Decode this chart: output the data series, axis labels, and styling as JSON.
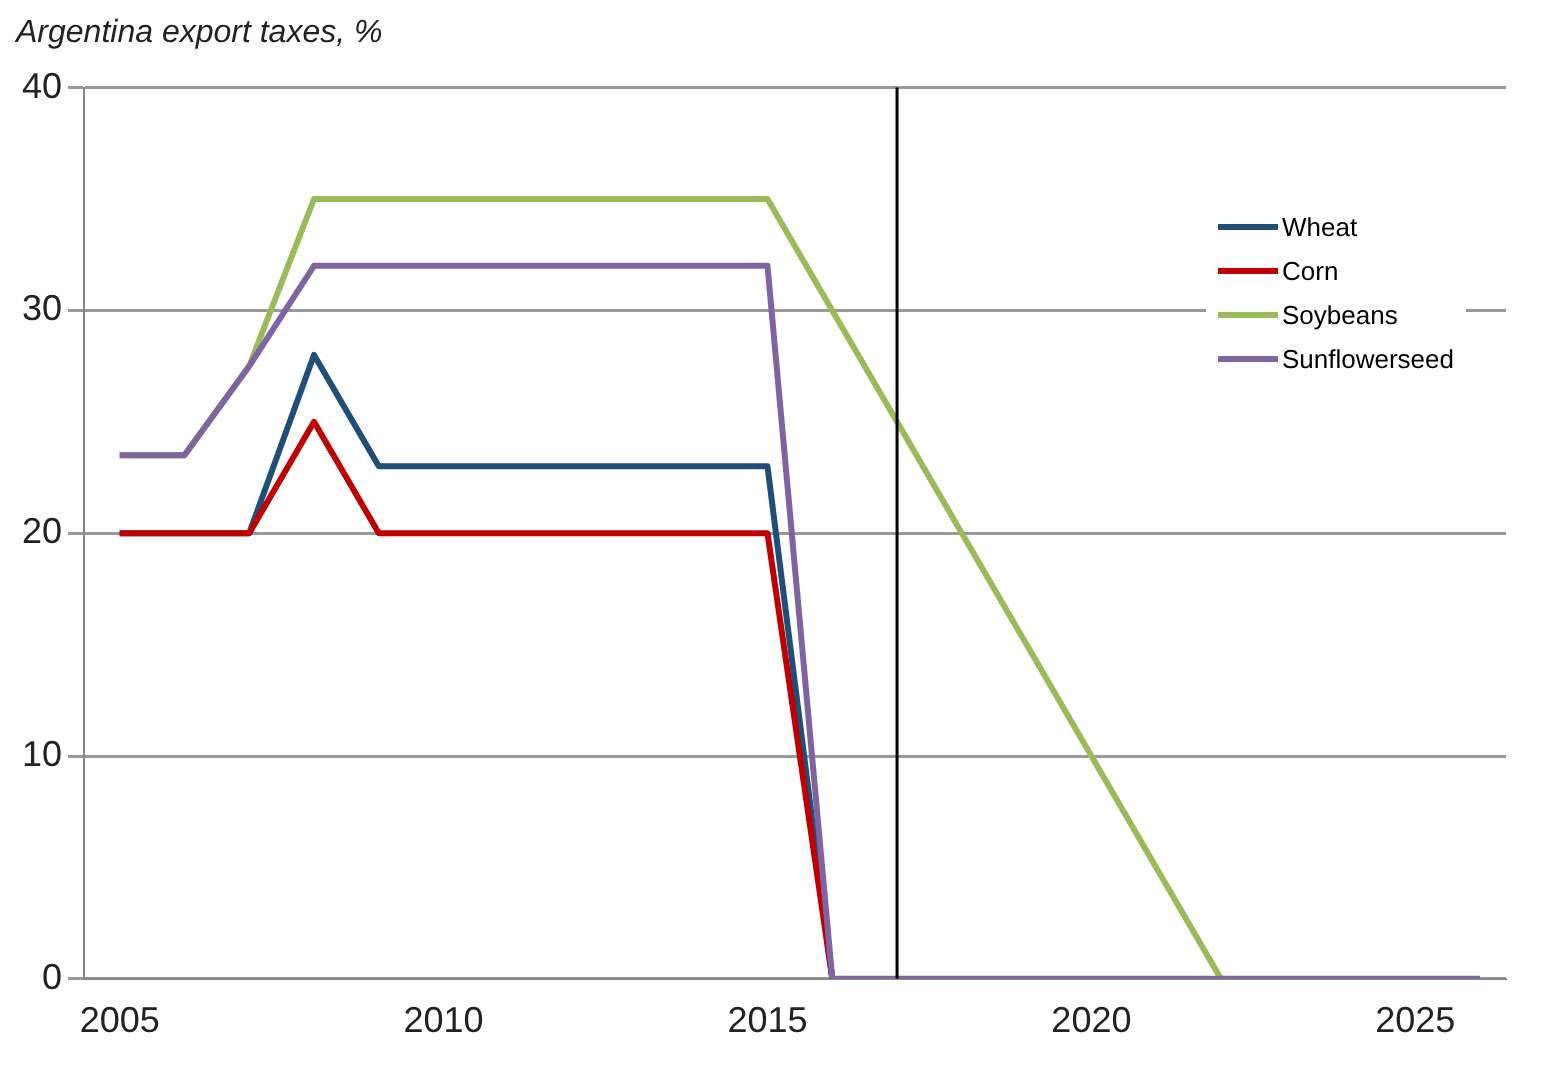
{
  "chart_data": {
    "type": "line",
    "subtitle": "Argentina export taxes, %",
    "x": [
      2005,
      2006,
      2007,
      2008,
      2009,
      2010,
      2011,
      2012,
      2013,
      2014,
      2015,
      2016,
      2017,
      2018,
      2019,
      2020,
      2021,
      2022,
      2023,
      2024,
      2025,
      2026
    ],
    "series": [
      {
        "name": "Wheat",
        "color": "#1f4e79",
        "values": [
          20,
          20,
          20,
          28,
          23,
          23,
          23,
          23,
          23,
          23,
          23,
          0,
          null,
          null,
          null,
          null,
          null,
          null,
          null,
          null,
          null,
          null
        ]
      },
      {
        "name": "Corn",
        "color": "#c00000",
        "values": [
          20,
          20,
          20,
          25,
          20,
          20,
          20,
          20,
          20,
          20,
          20,
          0,
          null,
          null,
          null,
          null,
          null,
          null,
          null,
          null,
          null,
          null
        ]
      },
      {
        "name": "Soybeans",
        "color": "#9bbb59",
        "values": [
          23.5,
          23.5,
          27.5,
          35,
          35,
          35,
          35,
          35,
          35,
          35,
          35,
          30,
          25,
          20,
          15,
          10,
          5,
          0,
          null,
          null,
          null,
          null
        ]
      },
      {
        "name": "Sunflowerseed",
        "color": "#8064a2",
        "values": [
          23.5,
          23.5,
          27.5,
          32,
          32,
          32,
          32,
          32,
          32,
          32,
          32,
          0,
          0,
          0,
          0,
          0,
          0,
          0,
          0,
          0,
          0,
          0
        ]
      }
    ],
    "xlim": [
      2004.45,
      2026.4
    ],
    "xticks": [
      {
        "value": 2005,
        "label": "2005"
      },
      {
        "value": 2010,
        "label": "2010"
      },
      {
        "value": 2015,
        "label": "2015"
      },
      {
        "value": 2020,
        "label": "2020"
      },
      {
        "value": 2025,
        "label": "2025"
      }
    ],
    "ylim": [
      0,
      40
    ],
    "yticks": [
      0,
      10,
      20,
      30,
      40
    ],
    "ref_lines": [
      {
        "axis": "x",
        "value": 2017,
        "color": "#000000"
      }
    ],
    "grid": "y",
    "legend": "top right",
    "marker": "none",
    "line_style": "solid"
  }
}
